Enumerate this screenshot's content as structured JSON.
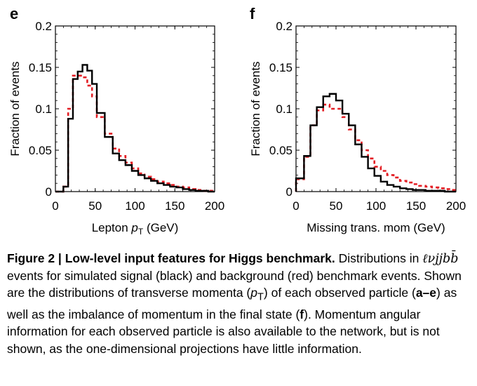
{
  "colors": {
    "signal": "#000000",
    "background": "#e31e24"
  },
  "chart_data": [
    {
      "type": "line",
      "panel_label": "e",
      "xlabel": "Lepton",
      "xlabel_var": "p",
      "xlabel_sub": "T",
      "xlabel_unit": "(GeV)",
      "ylabel": "Fraction of events",
      "xlim": [
        0,
        200
      ],
      "ylim": [
        0,
        0.2
      ],
      "xticks": [
        "0",
        "50",
        "100",
        "150",
        "200"
      ],
      "yticks": [
        "0",
        "0.05",
        "0.1",
        "0.15",
        "0.2"
      ],
      "bin_edges": [
        0,
        10,
        16,
        22,
        28,
        34,
        40,
        46,
        52,
        62,
        72,
        80,
        88,
        96,
        104,
        112,
        120,
        128,
        136,
        144,
        152,
        160,
        168,
        176,
        184,
        192,
        200
      ],
      "series": [
        {
          "style": "solid",
          "values": [
            0.0,
            0.006,
            0.088,
            0.136,
            0.145,
            0.153,
            0.146,
            0.13,
            0.095,
            0.066,
            0.046,
            0.038,
            0.032,
            0.025,
            0.02,
            0.016,
            0.013,
            0.01,
            0.008,
            0.006,
            0.005,
            0.003,
            0.002,
            0.001,
            0.001,
            0.0
          ]
        },
        {
          "style": "dashed",
          "values": [
            0.0,
            0.006,
            0.1,
            0.14,
            0.14,
            0.138,
            0.128,
            0.115,
            0.09,
            0.07,
            0.052,
            0.043,
            0.035,
            0.028,
            0.022,
            0.018,
            0.015,
            0.012,
            0.01,
            0.008,
            0.006,
            0.005,
            0.003,
            0.002,
            0.001,
            0.001
          ]
        }
      ]
    },
    {
      "type": "line",
      "panel_label": "f",
      "xlabel": "Missing trans. mom",
      "xlabel_unit": "(GeV)",
      "ylabel": "Fraction of events",
      "xlim": [
        0,
        200
      ],
      "ylim": [
        0,
        0.2
      ],
      "xticks": [
        "0",
        "50",
        "100",
        "150",
        "200"
      ],
      "yticks": [
        "0",
        "0.05",
        "0.1",
        "0.15",
        "0.2"
      ],
      "bin_edges": [
        0,
        10,
        18,
        26,
        34,
        42,
        50,
        58,
        66,
        74,
        82,
        90,
        98,
        106,
        114,
        122,
        130,
        138,
        146,
        154,
        162,
        170,
        178,
        186,
        194,
        200
      ],
      "series": [
        {
          "style": "solid",
          "values": [
            0.016,
            0.043,
            0.08,
            0.102,
            0.115,
            0.118,
            0.11,
            0.094,
            0.08,
            0.057,
            0.042,
            0.028,
            0.019,
            0.012,
            0.008,
            0.006,
            0.004,
            0.003,
            0.002,
            0.002,
            0.001,
            0.001,
            0.001,
            0.0,
            0.0
          ]
        },
        {
          "style": "dashed",
          "values": [
            0.015,
            0.042,
            0.08,
            0.098,
            0.105,
            0.1,
            0.1,
            0.09,
            0.075,
            0.062,
            0.05,
            0.04,
            0.03,
            0.025,
            0.02,
            0.017,
            0.013,
            0.011,
            0.009,
            0.007,
            0.006,
            0.005,
            0.004,
            0.003,
            0.002
          ]
        }
      ]
    }
  ],
  "caption": {
    "figure_label": "Figure 2 | Low-level input features for Higgs benchmark.",
    "text_1": " Distributions in ",
    "equation": "ℓνjjbb̄",
    "text_2": " events for simulated signal (black) and background (red) benchmark events. Shown are the distributions of transverse momenta (",
    "pt_symbol": "p",
    "pt_sub": "T",
    "text_3": ") of each observed particle (",
    "panel_range": "a–e",
    "text_4": ") as well as the imbalance of momentum in the final state (",
    "panel_f": "f",
    "text_5": "). Momentum angular information for each observed particle is also available to the network, but is not shown, as the one-dimensional projections have little information."
  }
}
